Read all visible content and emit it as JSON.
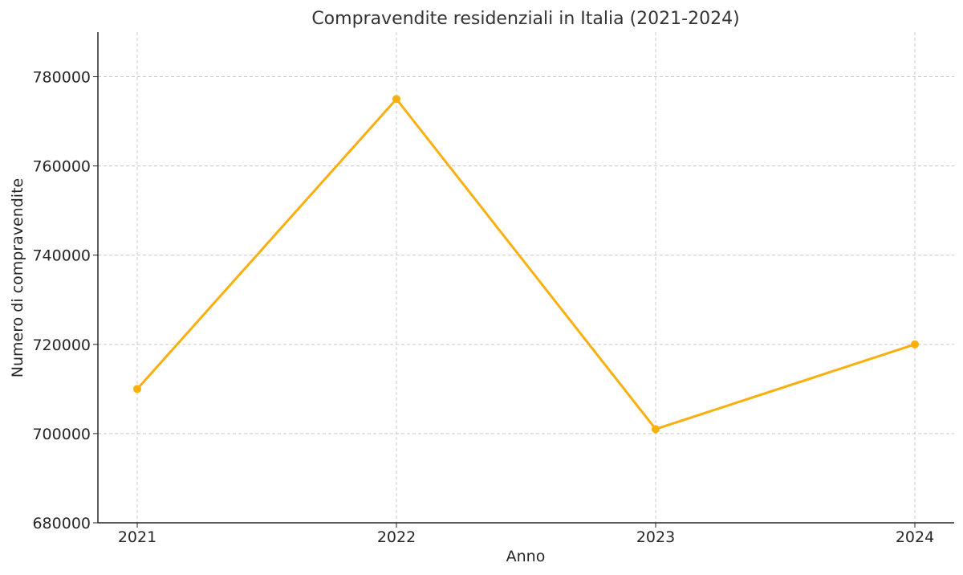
{
  "chart_data": {
    "type": "line",
    "title": "Compravendite residenziali in Italia (2021-2024)",
    "xlabel": "Anno",
    "ylabel": "Numero di compravendite",
    "categories": [
      "2021",
      "2022",
      "2023",
      "2024"
    ],
    "series": [
      {
        "values": [
          710000,
          775000,
          701000,
          720000
        ],
        "color": "#f9b00f",
        "marker": "circle"
      }
    ],
    "ylim": [
      680000,
      790000
    ],
    "yticks": [
      680000,
      700000,
      720000,
      740000,
      760000,
      780000
    ],
    "ytick_labels": [
      "680000",
      "700000",
      "720000",
      "740000",
      "760000",
      "780000"
    ],
    "grid": true,
    "grid_style": "dashed",
    "legend": false
  }
}
